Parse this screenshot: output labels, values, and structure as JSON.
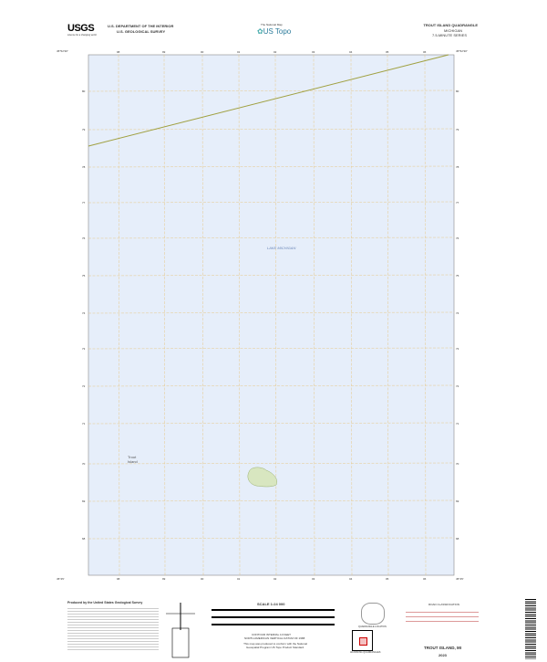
{
  "header": {
    "agency_line1": "U.S. DEPARTMENT OF THE INTERIOR",
    "agency_line2": "U.S. GEOLOGICAL SURVEY",
    "logo": "USGS",
    "logo_tagline": "science for a changing world",
    "center_logo": "US Topo",
    "center_tagline": "The National Map",
    "quad_title": "TROUT ISLAND QUADRANGLE",
    "state": "MICHIGAN",
    "series": "7.5-MINUTE SERIES"
  },
  "map": {
    "water_label": "LAKE MICHIGAN",
    "island_label": "Trout Island",
    "top_ticks": [
      "98",
      "99",
      "00",
      "01",
      "02",
      "03",
      "04",
      "05",
      "06"
    ],
    "bottom_ticks": [
      "98",
      "99",
      "00",
      "01",
      "02",
      "03",
      "04",
      "05",
      "06"
    ],
    "right_ticks": [
      "80",
      "79",
      "78",
      "77",
      "76",
      "75",
      "74",
      "73",
      "72",
      "71",
      "70",
      "69",
      "68"
    ],
    "corner_nw": "45°52'30\"",
    "corner_ne": "45°52'30\"",
    "corner_sw": "45°45'",
    "corner_se": "45°45'",
    "colors": {
      "water": "#e6eefa",
      "land": "#d8e6c0",
      "grid": "#e8c98a",
      "shore": "#a0a040"
    }
  },
  "footer": {
    "producer": "Produced by the United States Geological Survey",
    "scale": "SCALE 1:24 000",
    "contour_note": "CONTOUR INTERVAL 10 FEET",
    "datum_note": "NORTH AMERICAN VERTICAL DATUM OF 1988",
    "standard_note": "This map was produced to conform with the National Geospatial Program US Topo Product Standard.",
    "location_caption": "QUADRANGLE LOCATION",
    "adjoining_caption": "ADJOINING QUADRANGLES",
    "road_class": "ROAD CLASSIFICATION",
    "footer_title": "TROUT ISLAND, MI",
    "year": "2023"
  }
}
